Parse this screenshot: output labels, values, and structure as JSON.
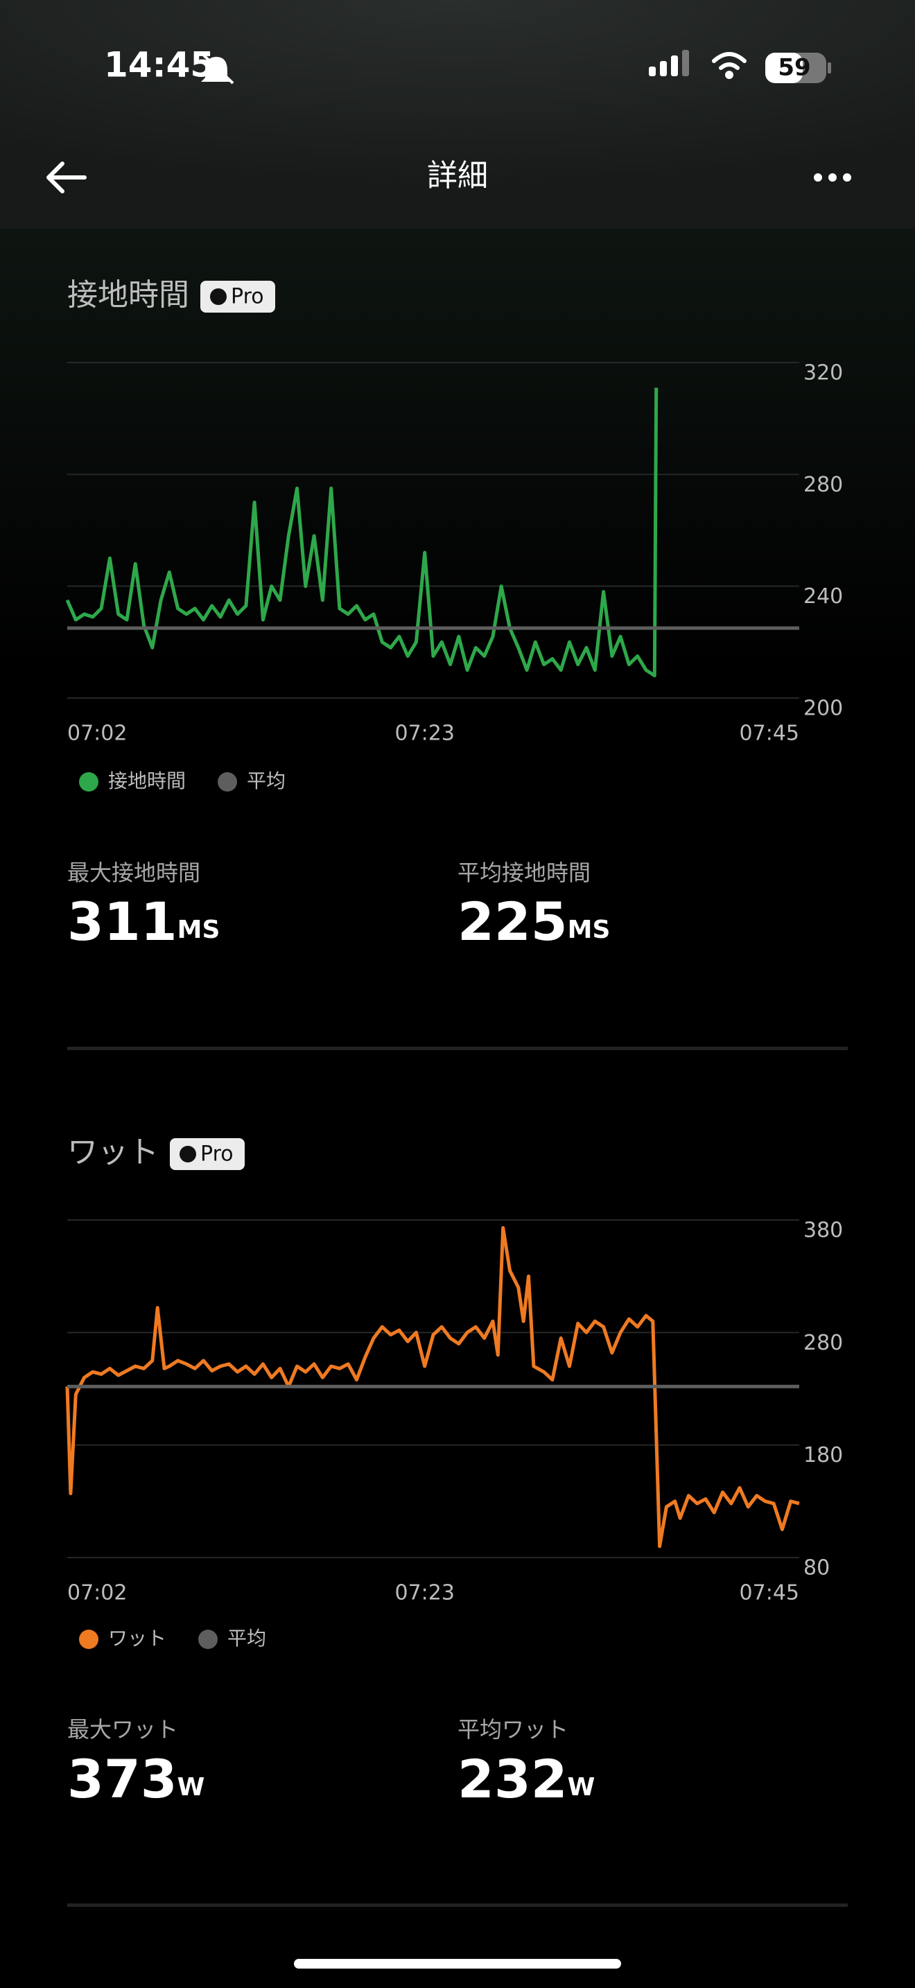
{
  "status_bar": {
    "time": "14:45",
    "battery": "59"
  },
  "header": {
    "title": "詳細"
  },
  "chart_data": [
    {
      "type": "line",
      "title": "接地時間",
      "badge": "Pro",
      "xlim": [
        0,
        43
      ],
      "xticks": [
        {
          "value": 0,
          "label": "07:02"
        },
        {
          "value": 21,
          "label": "07:23"
        },
        {
          "value": 43,
          "label": "07:45"
        }
      ],
      "ylim": [
        200,
        320
      ],
      "yticks": [
        200,
        240,
        280,
        320
      ],
      "grid": true,
      "series": [
        {
          "name": "接地時間",
          "color": "#2ea84a",
          "x": [
            0,
            0.5,
            1,
            1.5,
            2,
            2.5,
            3,
            3.5,
            4,
            4.5,
            5,
            5.5,
            6,
            6.5,
            7,
            7.5,
            8,
            8.5,
            9,
            9.5,
            10,
            10.5,
            11,
            11.5,
            12,
            12.5,
            13,
            13.5,
            14,
            14.5,
            15,
            15.5,
            16,
            16.5,
            17,
            17.5,
            18,
            18.5,
            19,
            19.5,
            20,
            20.5,
            21,
            21.5,
            22,
            22.5,
            23,
            23.5,
            24,
            24.5,
            25,
            25.5,
            26,
            26.5,
            27,
            27.5,
            28,
            28.5,
            29,
            29.5,
            30,
            30.5,
            31,
            31.5,
            32,
            32.5,
            33,
            33.5,
            34,
            34.5,
            34.6
          ],
          "values": [
            235,
            228,
            230,
            229,
            232,
            250,
            230,
            228,
            248,
            226,
            218,
            235,
            245,
            232,
            230,
            232,
            228,
            233,
            229,
            235,
            230,
            233,
            270,
            228,
            240,
            235,
            258,
            275,
            240,
            258,
            235,
            275,
            232,
            230,
            233,
            228,
            230,
            220,
            218,
            222,
            215,
            220,
            252,
            215,
            220,
            212,
            222,
            210,
            218,
            215,
            222,
            240,
            225,
            218,
            210,
            220,
            212,
            214,
            210,
            220,
            212,
            218,
            210,
            238,
            215,
            222,
            212,
            215,
            210,
            208,
            311
          ]
        },
        {
          "name": "平均",
          "color": "#5e5e5e"
        }
      ],
      "stats": [
        {
          "label": "最大接地時間",
          "value": 311,
          "unit": "MS"
        },
        {
          "label": "平均接地時間",
          "value": 225,
          "unit": "MS"
        }
      ]
    },
    {
      "type": "line",
      "title": "ワット",
      "badge": "Pro",
      "xlim": [
        0,
        43
      ],
      "xticks": [
        {
          "value": 0,
          "label": "07:02"
        },
        {
          "value": 21,
          "label": "07:23"
        },
        {
          "value": 43,
          "label": "07:45"
        }
      ],
      "ylim": [
        80,
        380
      ],
      "yticks": [
        80,
        180,
        280,
        380
      ],
      "grid": true,
      "series": [
        {
          "name": "ワット",
          "color": "#ef7a22",
          "x": [
            0,
            0.2,
            0.5,
            1,
            1.5,
            2,
            2.5,
            3,
            3.5,
            4,
            4.5,
            5,
            5.3,
            5.7,
            6,
            6.5,
            7,
            7.5,
            8,
            8.5,
            9,
            9.5,
            10,
            10.5,
            11,
            11.5,
            12,
            12.5,
            13,
            13.5,
            14,
            14.5,
            15,
            15.5,
            16,
            16.5,
            17,
            17.5,
            18,
            18.5,
            19,
            19.5,
            20,
            20.5,
            21,
            21.5,
            22,
            22.5,
            23,
            23.5,
            24,
            24.5,
            25,
            25.3,
            25.6,
            26,
            26.5,
            26.8,
            27.1,
            27.4,
            28,
            28.5,
            29,
            29.5,
            30,
            30.5,
            31,
            31.5,
            32,
            32.5,
            33,
            33.5,
            34,
            34.4,
            34.8,
            35.2,
            35.7,
            36,
            36.5,
            37,
            37.5,
            38,
            38.5,
            39,
            39.5,
            40,
            40.5,
            41,
            41.5,
            42,
            42.5,
            43
          ],
          "values": [
            232,
            137,
            225,
            240,
            245,
            243,
            248,
            242,
            246,
            250,
            248,
            255,
            302,
            248,
            250,
            255,
            252,
            248,
            255,
            246,
            250,
            252,
            245,
            250,
            243,
            252,
            240,
            248,
            232,
            250,
            245,
            252,
            240,
            250,
            248,
            252,
            238,
            258,
            275,
            285,
            278,
            282,
            272,
            280,
            250,
            278,
            285,
            275,
            270,
            280,
            285,
            275,
            290,
            260,
            373,
            335,
            320,
            290,
            330,
            250,
            245,
            238,
            275,
            250,
            288,
            280,
            290,
            285,
            262,
            280,
            292,
            285,
            295,
            290,
            90,
            125,
            130,
            115,
            135,
            128,
            132,
            120,
            138,
            128,
            142,
            125,
            135,
            130,
            128,
            105,
            130,
            128
          ]
        },
        {
          "name": "平均",
          "color": "#5e5e5e"
        }
      ],
      "stats": [
        {
          "label": "最大ワット",
          "value": 373,
          "unit": "W"
        },
        {
          "label": "平均ワット",
          "value": 232,
          "unit": "W"
        }
      ]
    }
  ]
}
